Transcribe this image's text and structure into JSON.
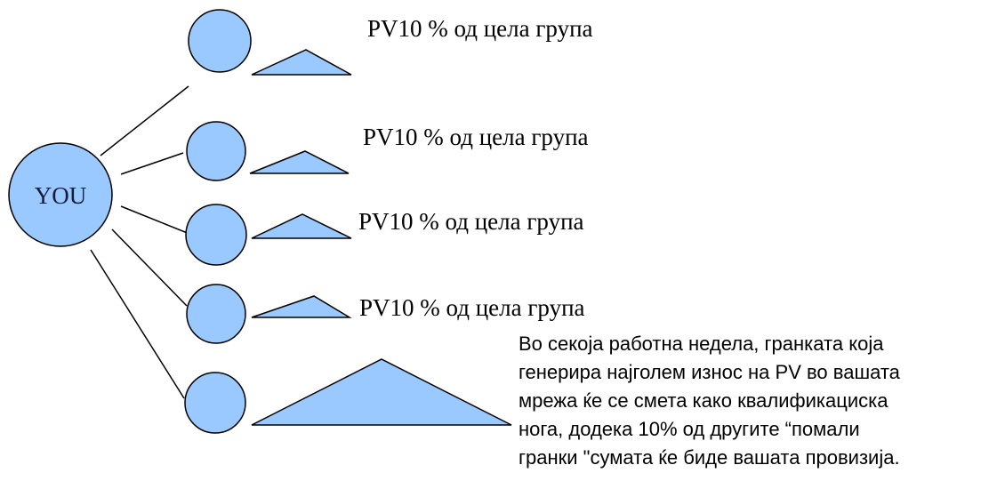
{
  "colors": {
    "node_fill": "#99c9ff",
    "stroke": "#000000"
  },
  "root": {
    "label": "YOU"
  },
  "branches": [
    {
      "label": "PV10 % од цела група"
    },
    {
      "label": "PV10 % од цела група"
    },
    {
      "label": "PV10 % од цела група"
    },
    {
      "label": "PV10 % од цела група"
    }
  ],
  "note": {
    "lines": [
      "Во секоја работна недела, гранката која",
      "генерира најголем износ на PV во вашата",
      "мрежа ќе се смета како квалификациска",
      "нога, додека 10% од другите “помали",
      "гранки \"сумата ќе биде вашата провизија."
    ]
  }
}
